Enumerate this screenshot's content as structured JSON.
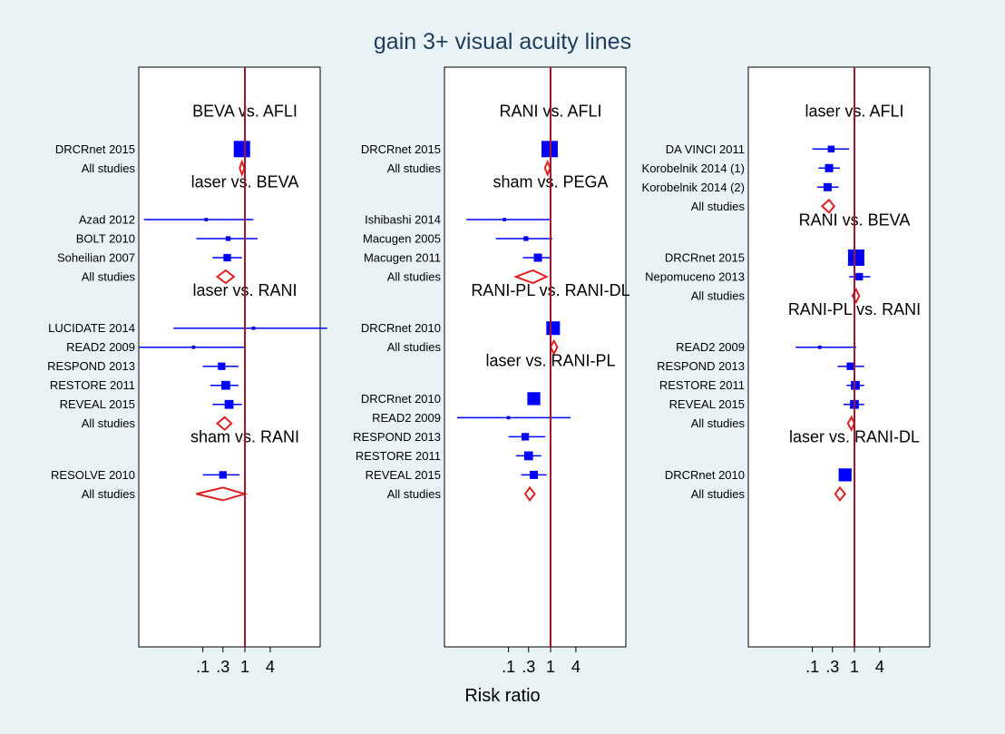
{
  "title": "gain 3+ visual acuity lines",
  "xlabel": "Risk ratio",
  "colors": {
    "background": "#e9f2f5",
    "panel": "#ffffff",
    "reference_line": "#a0172f",
    "study": "#0000ff",
    "pooled": "#e02020"
  },
  "chart_data": {
    "type": "scatter",
    "x_scale": "log",
    "xlim": [
      0.003,
      150
    ],
    "x_ticks": [
      0.1,
      0.3,
      1,
      4
    ],
    "x_tick_labels": [
      ".1",
      ".3",
      "1",
      "4"
    ],
    "reference_x": 1,
    "panels": [
      {
        "groups": [
          {
            "title": "BEVA vs. AFLI",
            "studies": [
              {
                "label": "DRCRnet 2015",
                "rr": 0.85,
                "ci": [
                  0.7,
                  1.05
                ],
                "weight": 1.0
              },
              {
                "label": "All studies",
                "rr": 0.85,
                "ci": [
                  0.75,
                  0.97
                ],
                "pooled": true
              }
            ]
          },
          {
            "title": "laser vs. BEVA",
            "studies": [
              {
                "label": "Azad 2012",
                "rr": 0.12,
                "ci": [
                  0.004,
                  1.6
                ],
                "weight": 0.05
              },
              {
                "label": "BOLT 2010",
                "rr": 0.4,
                "ci": [
                  0.07,
                  2.0
                ],
                "weight": 0.15
              },
              {
                "label": "Soheilian 2007",
                "rr": 0.38,
                "ci": [
                  0.17,
                  0.85
                ],
                "weight": 0.35
              },
              {
                "label": "All studies",
                "rr": 0.35,
                "ci": [
                  0.22,
                  0.55
                ],
                "pooled": true
              }
            ]
          },
          {
            "title": "laser vs. RANI",
            "studies": [
              {
                "label": "LUCIDATE 2014",
                "rr": 1.6,
                "ci": [
                  0.02,
                  90
                ],
                "weight": 0.05
              },
              {
                "label": "READ2 2009",
                "rr": 0.06,
                "ci": [
                  0.003,
                  1.0
                ],
                "weight": 0.05
              },
              {
                "label": "RESPOND 2013",
                "rr": 0.28,
                "ci": [
                  0.1,
                  0.7
                ],
                "weight": 0.35
              },
              {
                "label": "RESTORE 2011",
                "rr": 0.35,
                "ci": [
                  0.15,
                  0.7
                ],
                "weight": 0.45
              },
              {
                "label": "REVEAL 2015",
                "rr": 0.42,
                "ci": [
                  0.17,
                  0.85
                ],
                "weight": 0.45
              },
              {
                "label": "All studies",
                "rr": 0.33,
                "ci": [
                  0.22,
                  0.48
                ],
                "pooled": true
              }
            ]
          },
          {
            "title": "sham vs. RANI",
            "studies": [
              {
                "label": "RESOLVE 2010",
                "rr": 0.3,
                "ci": [
                  0.1,
                  0.75
                ],
                "weight": 0.35
              },
              {
                "label": "All studies",
                "rr": 0.3,
                "ci": [
                  0.07,
                  1.0
                ],
                "pooled": true
              }
            ]
          }
        ]
      },
      {
        "groups": [
          {
            "title": "RANI vs. AFLI",
            "studies": [
              {
                "label": "DRCRnet 2015",
                "rr": 0.95,
                "ci": [
                  0.7,
                  1.2
                ],
                "weight": 1.0
              },
              {
                "label": "All studies",
                "rr": 0.85,
                "ci": [
                  0.73,
                  0.98
                ],
                "pooled": true
              }
            ]
          },
          {
            "title": "sham vs. PEGA",
            "studies": [
              {
                "label": "Ishibashi 2014",
                "rr": 0.08,
                "ci": [
                  0.01,
                  1.0
                ],
                "weight": 0.05
              },
              {
                "label": "Macugen 2005",
                "rr": 0.26,
                "ci": [
                  0.05,
                  1.1
                ],
                "weight": 0.15
              },
              {
                "label": "Macugen 2011",
                "rr": 0.5,
                "ci": [
                  0.22,
                  1.0
                ],
                "weight": 0.4
              },
              {
                "label": "All studies",
                "rr": 0.38,
                "ci": [
                  0.15,
                  0.8
                ],
                "pooled": true
              }
            ]
          },
          {
            "title": "RANI-PL vs. RANI-DL",
            "studies": [
              {
                "label": "DRCRnet 2010",
                "rr": 1.15,
                "ci": [
                  0.85,
                  1.6
                ],
                "weight": 0.8
              },
              {
                "label": "All studies",
                "rr": 1.2,
                "ci": [
                  1.0,
                  1.45
                ],
                "pooled": true
              }
            ]
          },
          {
            "title": "laser vs. RANI-PL",
            "studies": [
              {
                "label": "DRCRnet 2010",
                "rr": 0.4,
                "ci": [
                  0.3,
                  0.55
                ],
                "weight": 0.75
              },
              {
                "label": "READ2 2009",
                "rr": 0.1,
                "ci": [
                  0.006,
                  3.0
                ],
                "weight": 0.05
              },
              {
                "label": "RESPOND 2013",
                "rr": 0.25,
                "ci": [
                  0.1,
                  0.75
                ],
                "weight": 0.35
              },
              {
                "label": "RESTORE 2011",
                "rr": 0.3,
                "ci": [
                  0.15,
                  0.6
                ],
                "weight": 0.45
              },
              {
                "label": "REVEAL 2015",
                "rr": 0.4,
                "ci": [
                  0.2,
                  0.8
                ],
                "weight": 0.4
              },
              {
                "label": "All studies",
                "rr": 0.32,
                "ci": [
                  0.25,
                  0.42
                ],
                "pooled": true
              }
            ]
          }
        ]
      },
      {
        "groups": [
          {
            "title": "laser vs. AFLI",
            "studies": [
              {
                "label": "DA VINCI 2011",
                "rr": 0.28,
                "ci": [
                  0.1,
                  0.75
                ],
                "weight": 0.3
              },
              {
                "label": "Korobelnik 2014 (1)",
                "rr": 0.25,
                "ci": [
                  0.14,
                  0.45
                ],
                "weight": 0.4
              },
              {
                "label": "Korobelnik 2014 (2)",
                "rr": 0.23,
                "ci": [
                  0.13,
                  0.42
                ],
                "weight": 0.4
              },
              {
                "label": "All studies",
                "rr": 0.25,
                "ci": [
                  0.17,
                  0.33
                ],
                "pooled": true
              }
            ]
          },
          {
            "title": "RANI vs. BEVA",
            "studies": [
              {
                "label": "DRCRnet 2015",
                "rr": 1.1,
                "ci": [
                  0.85,
                  1.4
                ],
                "weight": 1.0
              },
              {
                "label": "Nepomuceno 2013",
                "rr": 1.3,
                "ci": [
                  0.75,
                  2.4
                ],
                "weight": 0.35
              },
              {
                "label": "All studies",
                "rr": 1.1,
                "ci": [
                  0.9,
                  1.3
                ],
                "pooled": true
              }
            ]
          },
          {
            "title": "RANI-PL vs. RANI",
            "studies": [
              {
                "label": "READ2 2009",
                "rr": 0.15,
                "ci": [
                  0.04,
                  1.1
                ],
                "weight": 0.05
              },
              {
                "label": "RESPOND 2013",
                "rr": 0.8,
                "ci": [
                  0.4,
                  1.7
                ],
                "weight": 0.35
              },
              {
                "label": "RESTORE 2011",
                "rr": 1.05,
                "ci": [
                  0.65,
                  1.7
                ],
                "weight": 0.45
              },
              {
                "label": "REVEAL 2015",
                "rr": 1.0,
                "ci": [
                  0.55,
                  1.7
                ],
                "weight": 0.45
              },
              {
                "label": "All studies",
                "rr": 0.85,
                "ci": [
                  0.7,
                  1.0
                ],
                "pooled": true
              }
            ]
          },
          {
            "title": "laser vs. RANI-DL",
            "studies": [
              {
                "label": "DRCRnet 2010",
                "rr": 0.6,
                "ci": [
                  0.45,
                  0.8
                ],
                "weight": 0.75
              },
              {
                "label": "All studies",
                "rr": 0.45,
                "ci": [
                  0.35,
                  0.6
                ],
                "pooled": true
              }
            ]
          }
        ]
      }
    ]
  }
}
